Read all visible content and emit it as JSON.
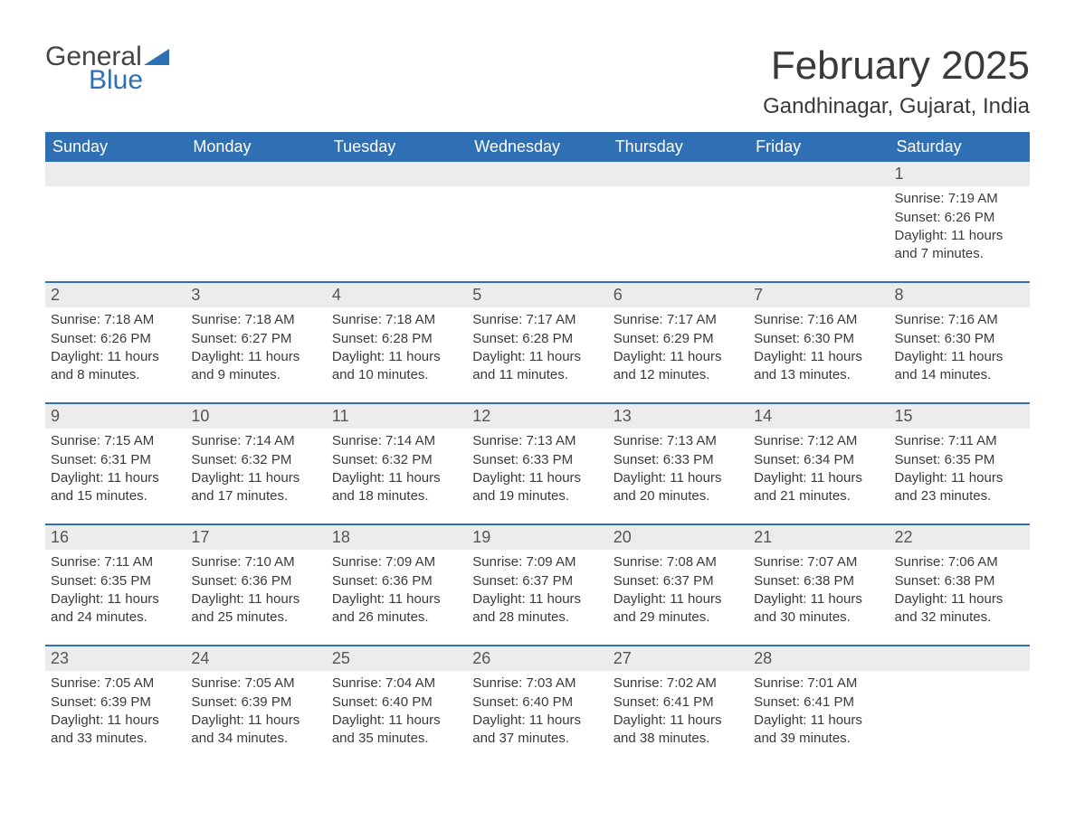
{
  "brand": {
    "general": "General",
    "blue": "Blue"
  },
  "title": "February 2025",
  "location": "Gandhinagar, Gujarat, India",
  "colors": {
    "header_bg": "#2f6fb3",
    "header_text": "#ffffff",
    "daynum_bg": "#ececec",
    "text": "#3a3a3a",
    "rule": "#2f6fb3",
    "page_bg": "#ffffff"
  },
  "day_names": [
    "Sunday",
    "Monday",
    "Tuesday",
    "Wednesday",
    "Thursday",
    "Friday",
    "Saturday"
  ],
  "weeks": [
    {
      "days": [
        {
          "n": "",
          "sunrise": "",
          "sunset": "",
          "daylight": ""
        },
        {
          "n": "",
          "sunrise": "",
          "sunset": "",
          "daylight": ""
        },
        {
          "n": "",
          "sunrise": "",
          "sunset": "",
          "daylight": ""
        },
        {
          "n": "",
          "sunrise": "",
          "sunset": "",
          "daylight": ""
        },
        {
          "n": "",
          "sunrise": "",
          "sunset": "",
          "daylight": ""
        },
        {
          "n": "",
          "sunrise": "",
          "sunset": "",
          "daylight": ""
        },
        {
          "n": "1",
          "sunrise": "Sunrise: 7:19 AM",
          "sunset": "Sunset: 6:26 PM",
          "daylight": "Daylight: 11 hours and 7 minutes."
        }
      ]
    },
    {
      "days": [
        {
          "n": "2",
          "sunrise": "Sunrise: 7:18 AM",
          "sunset": "Sunset: 6:26 PM",
          "daylight": "Daylight: 11 hours and 8 minutes."
        },
        {
          "n": "3",
          "sunrise": "Sunrise: 7:18 AM",
          "sunset": "Sunset: 6:27 PM",
          "daylight": "Daylight: 11 hours and 9 minutes."
        },
        {
          "n": "4",
          "sunrise": "Sunrise: 7:18 AM",
          "sunset": "Sunset: 6:28 PM",
          "daylight": "Daylight: 11 hours and 10 minutes."
        },
        {
          "n": "5",
          "sunrise": "Sunrise: 7:17 AM",
          "sunset": "Sunset: 6:28 PM",
          "daylight": "Daylight: 11 hours and 11 minutes."
        },
        {
          "n": "6",
          "sunrise": "Sunrise: 7:17 AM",
          "sunset": "Sunset: 6:29 PM",
          "daylight": "Daylight: 11 hours and 12 minutes."
        },
        {
          "n": "7",
          "sunrise": "Sunrise: 7:16 AM",
          "sunset": "Sunset: 6:30 PM",
          "daylight": "Daylight: 11 hours and 13 minutes."
        },
        {
          "n": "8",
          "sunrise": "Sunrise: 7:16 AM",
          "sunset": "Sunset: 6:30 PM",
          "daylight": "Daylight: 11 hours and 14 minutes."
        }
      ]
    },
    {
      "days": [
        {
          "n": "9",
          "sunrise": "Sunrise: 7:15 AM",
          "sunset": "Sunset: 6:31 PM",
          "daylight": "Daylight: 11 hours and 15 minutes."
        },
        {
          "n": "10",
          "sunrise": "Sunrise: 7:14 AM",
          "sunset": "Sunset: 6:32 PM",
          "daylight": "Daylight: 11 hours and 17 minutes."
        },
        {
          "n": "11",
          "sunrise": "Sunrise: 7:14 AM",
          "sunset": "Sunset: 6:32 PM",
          "daylight": "Daylight: 11 hours and 18 minutes."
        },
        {
          "n": "12",
          "sunrise": "Sunrise: 7:13 AM",
          "sunset": "Sunset: 6:33 PM",
          "daylight": "Daylight: 11 hours and 19 minutes."
        },
        {
          "n": "13",
          "sunrise": "Sunrise: 7:13 AM",
          "sunset": "Sunset: 6:33 PM",
          "daylight": "Daylight: 11 hours and 20 minutes."
        },
        {
          "n": "14",
          "sunrise": "Sunrise: 7:12 AM",
          "sunset": "Sunset: 6:34 PM",
          "daylight": "Daylight: 11 hours and 21 minutes."
        },
        {
          "n": "15",
          "sunrise": "Sunrise: 7:11 AM",
          "sunset": "Sunset: 6:35 PM",
          "daylight": "Daylight: 11 hours and 23 minutes."
        }
      ]
    },
    {
      "days": [
        {
          "n": "16",
          "sunrise": "Sunrise: 7:11 AM",
          "sunset": "Sunset: 6:35 PM",
          "daylight": "Daylight: 11 hours and 24 minutes."
        },
        {
          "n": "17",
          "sunrise": "Sunrise: 7:10 AM",
          "sunset": "Sunset: 6:36 PM",
          "daylight": "Daylight: 11 hours and 25 minutes."
        },
        {
          "n": "18",
          "sunrise": "Sunrise: 7:09 AM",
          "sunset": "Sunset: 6:36 PM",
          "daylight": "Daylight: 11 hours and 26 minutes."
        },
        {
          "n": "19",
          "sunrise": "Sunrise: 7:09 AM",
          "sunset": "Sunset: 6:37 PM",
          "daylight": "Daylight: 11 hours and 28 minutes."
        },
        {
          "n": "20",
          "sunrise": "Sunrise: 7:08 AM",
          "sunset": "Sunset: 6:37 PM",
          "daylight": "Daylight: 11 hours and 29 minutes."
        },
        {
          "n": "21",
          "sunrise": "Sunrise: 7:07 AM",
          "sunset": "Sunset: 6:38 PM",
          "daylight": "Daylight: 11 hours and 30 minutes."
        },
        {
          "n": "22",
          "sunrise": "Sunrise: 7:06 AM",
          "sunset": "Sunset: 6:38 PM",
          "daylight": "Daylight: 11 hours and 32 minutes."
        }
      ]
    },
    {
      "days": [
        {
          "n": "23",
          "sunrise": "Sunrise: 7:05 AM",
          "sunset": "Sunset: 6:39 PM",
          "daylight": "Daylight: 11 hours and 33 minutes."
        },
        {
          "n": "24",
          "sunrise": "Sunrise: 7:05 AM",
          "sunset": "Sunset: 6:39 PM",
          "daylight": "Daylight: 11 hours and 34 minutes."
        },
        {
          "n": "25",
          "sunrise": "Sunrise: 7:04 AM",
          "sunset": "Sunset: 6:40 PM",
          "daylight": "Daylight: 11 hours and 35 minutes."
        },
        {
          "n": "26",
          "sunrise": "Sunrise: 7:03 AM",
          "sunset": "Sunset: 6:40 PM",
          "daylight": "Daylight: 11 hours and 37 minutes."
        },
        {
          "n": "27",
          "sunrise": "Sunrise: 7:02 AM",
          "sunset": "Sunset: 6:41 PM",
          "daylight": "Daylight: 11 hours and 38 minutes."
        },
        {
          "n": "28",
          "sunrise": "Sunrise: 7:01 AM",
          "sunset": "Sunset: 6:41 PM",
          "daylight": "Daylight: 11 hours and 39 minutes."
        },
        {
          "n": "",
          "sunrise": "",
          "sunset": "",
          "daylight": ""
        }
      ]
    }
  ]
}
